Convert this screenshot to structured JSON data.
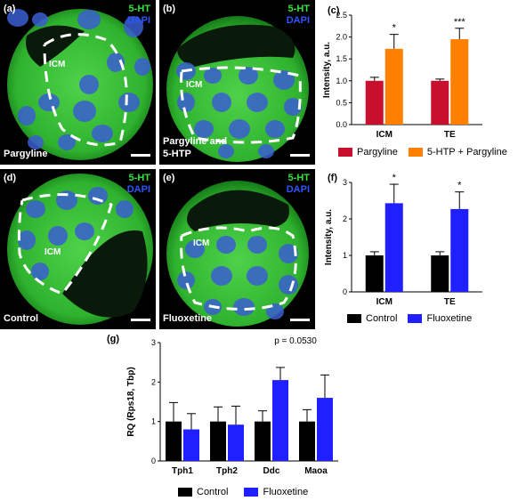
{
  "colors": {
    "green": "#34e43a",
    "blue_dapi": "#2d55ff",
    "pargyline": "#c8102e",
    "htp_pargyline": "#ff7f00",
    "control": "#000000",
    "fluoxetine": "#1f1fff"
  },
  "panels": [
    {
      "letter": "(a)",
      "stain1": "5-HT",
      "stain2": "DAPI",
      "region": "ICM",
      "caption": "Pargyline"
    },
    {
      "letter": "(b)",
      "stain1": "5-HT",
      "stain2": "DAPI",
      "region": "ICM",
      "caption_line1": "Pargyline and",
      "caption_line2": "5-HTP"
    },
    {
      "letter": "(d)",
      "stain1": "5-HT",
      "stain2": "DAPI",
      "region": "ICM",
      "caption": "Control"
    },
    {
      "letter": "(e)",
      "stain1": "5-HT",
      "stain2": "DAPI",
      "region": "ICM",
      "caption": "Fluoxetine"
    }
  ],
  "chart_data": [
    {
      "letter": "(c)",
      "type": "bar",
      "categories": [
        "ICM",
        "TE"
      ],
      "series": [
        {
          "name": "Pargyline",
          "values": [
            1.0,
            1.0
          ],
          "errors": [
            0.08,
            0.04
          ]
        },
        {
          "name": "5-HTP + Pargyline",
          "values": [
            1.73,
            1.95
          ],
          "errors": [
            0.33,
            0.25
          ]
        }
      ],
      "significance": [
        "*",
        "***"
      ],
      "ylabel": "Intensity, a.u.",
      "ylim": [
        0,
        2.5
      ],
      "yticks": [
        "0.0",
        "0.5",
        "1.0",
        "1.5",
        "2.0",
        "2.5"
      ],
      "legend_position": "bottom"
    },
    {
      "letter": "(f)",
      "type": "bar",
      "categories": [
        "ICM",
        "TE"
      ],
      "series": [
        {
          "name": "Control",
          "values": [
            1.0,
            1.0
          ],
          "errors": [
            0.1,
            0.1
          ]
        },
        {
          "name": "Fluoxetine",
          "values": [
            2.43,
            2.27
          ],
          "errors": [
            0.52,
            0.47
          ]
        }
      ],
      "significance": [
        "*",
        "*"
      ],
      "ylabel": "Intensity, a.u.",
      "ylim": [
        0,
        3
      ],
      "yticks": [
        "0",
        "1",
        "2",
        "3"
      ],
      "legend_position": "bottom"
    },
    {
      "letter": "(g)",
      "type": "bar",
      "categories": [
        "Tph1",
        "Tph2",
        "Ddc",
        "Maoa"
      ],
      "series": [
        {
          "name": "Control",
          "values": [
            1.0,
            1.0,
            1.0,
            1.0
          ],
          "errors": [
            0.48,
            0.37,
            0.27,
            0.3
          ]
        },
        {
          "name": "Fluoxetine",
          "values": [
            0.8,
            0.92,
            2.05,
            1.6
          ],
          "errors": [
            0.4,
            0.47,
            0.32,
            0.58
          ]
        }
      ],
      "annotation": "p = 0.0530",
      "ylabel": "RQ (Rps18, Tbp)",
      "ylim": [
        0,
        3
      ],
      "yticks": [
        "0",
        "1",
        "2",
        "3"
      ],
      "legend_position": "bottom"
    }
  ]
}
